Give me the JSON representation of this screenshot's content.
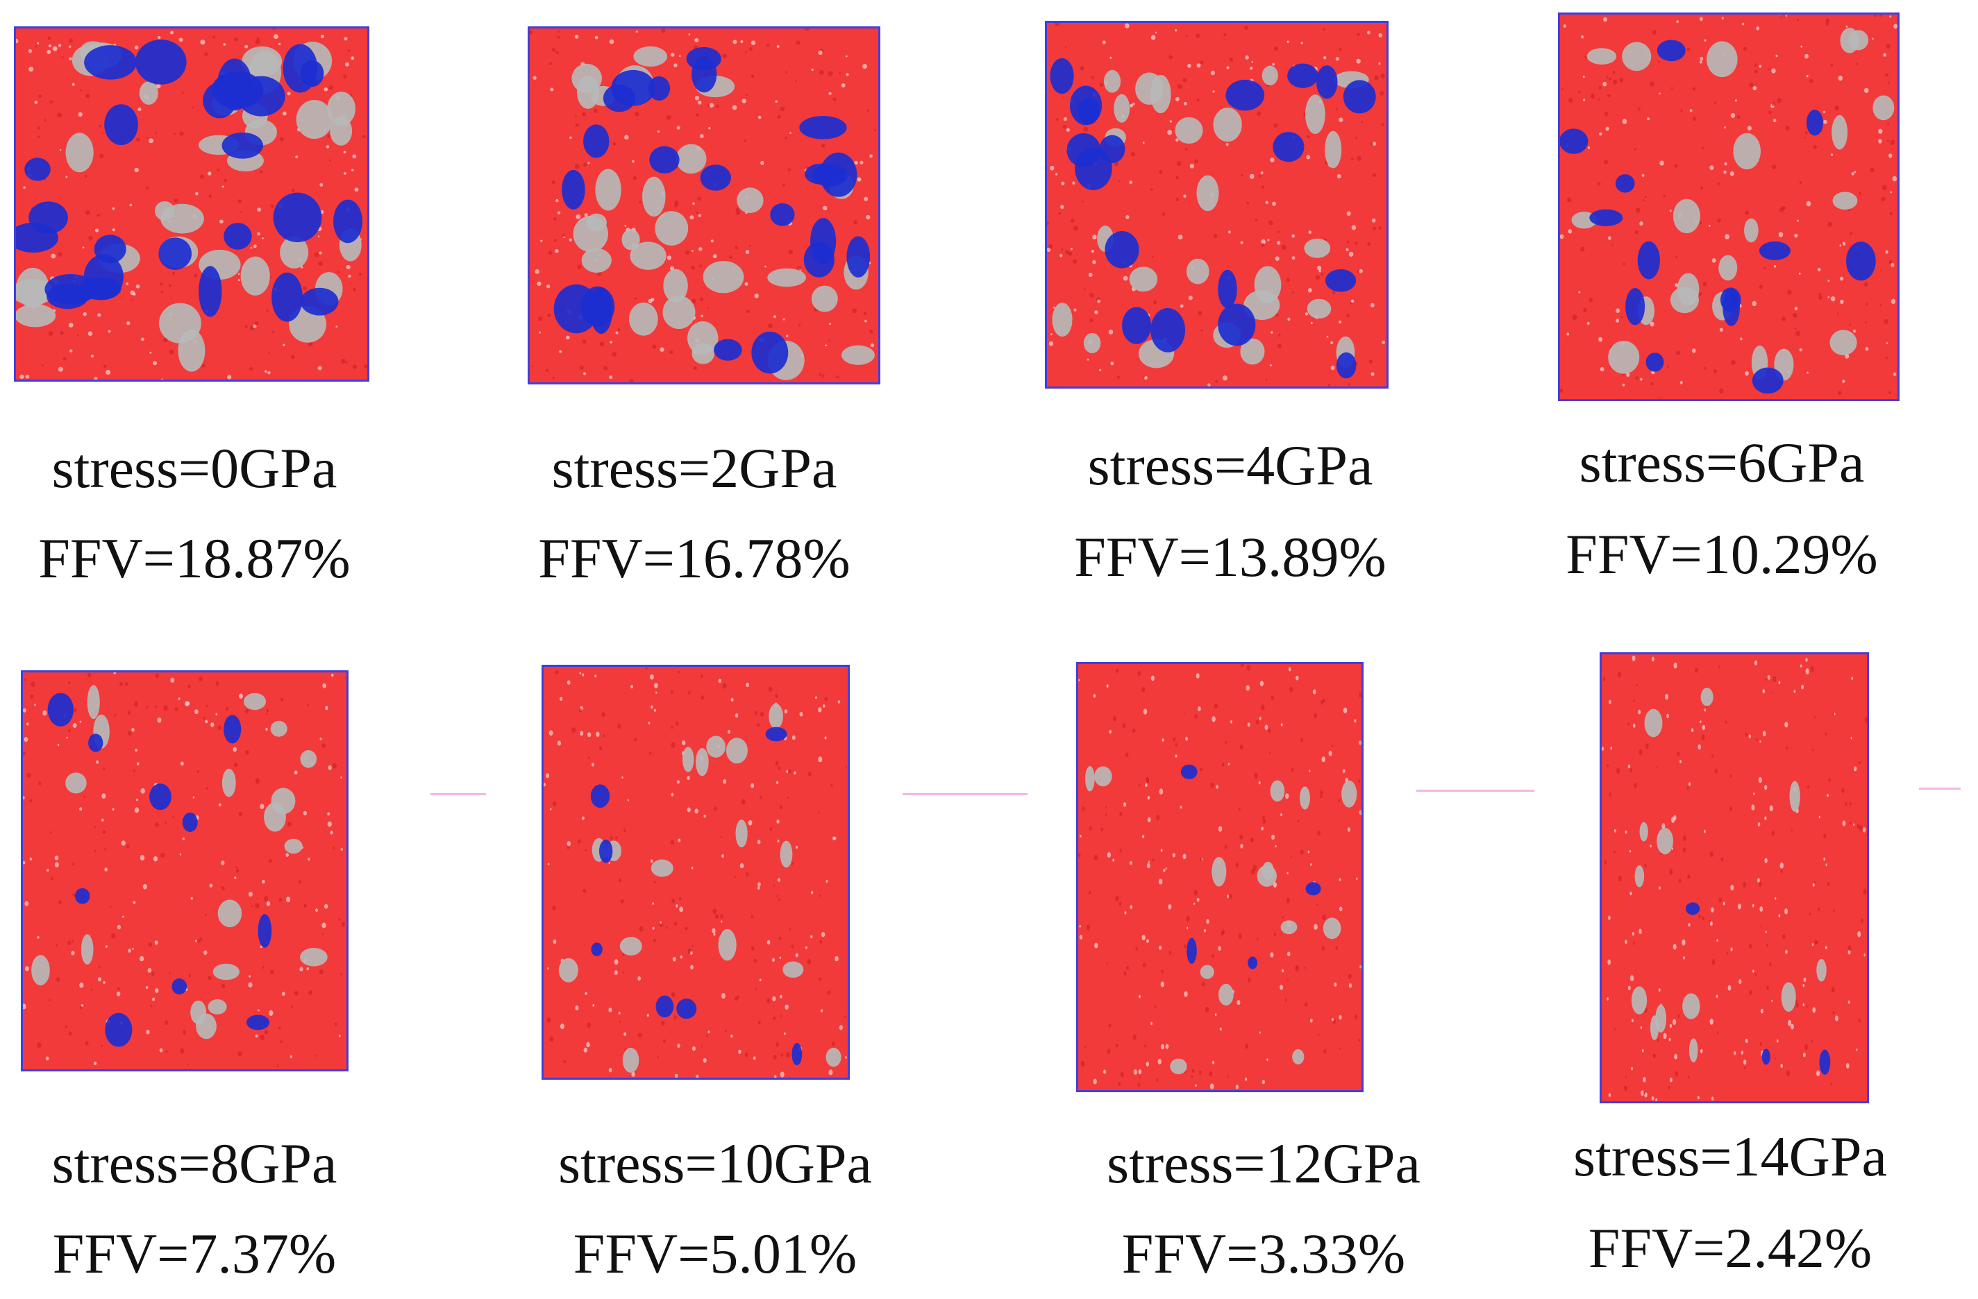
{
  "panels": [
    {
      "stress": "stress=0GPa",
      "ffv": "FFV=18.87%",
      "stress_gpa": 0,
      "ffv_percent": 18.87
    },
    {
      "stress": "stress=2GPa",
      "ffv": "FFV=16.78%",
      "stress_gpa": 2,
      "ffv_percent": 16.78
    },
    {
      "stress": "stress=4GPa",
      "ffv": "FFV=13.89%",
      "stress_gpa": 4,
      "ffv_percent": 13.89
    },
    {
      "stress": "stress=6GPa",
      "ffv": "FFV=10.29%",
      "stress_gpa": 6,
      "ffv_percent": 10.29
    },
    {
      "stress": "stress=8GPa",
      "ffv": "FFV=7.37%",
      "stress_gpa": 8,
      "ffv_percent": 7.37
    },
    {
      "stress": "stress=10GPa",
      "ffv": "FFV=5.01%",
      "stress_gpa": 10,
      "ffv_percent": 5.01
    },
    {
      "stress": "stress=12GPa",
      "ffv": "FFV=3.33%",
      "stress_gpa": 12,
      "ffv_percent": 3.33
    },
    {
      "stress": "stress=14GPa",
      "ffv": "FFV=2.42%",
      "stress_gpa": 14,
      "ffv_percent": 2.42
    }
  ],
  "colors": {
    "polymer": "#f23a3a",
    "free_volume_blue": "#1c2fd0",
    "free_volume_gray": "#b8b8b8",
    "box_border": "#3f3fe0",
    "text": "#111111"
  }
}
